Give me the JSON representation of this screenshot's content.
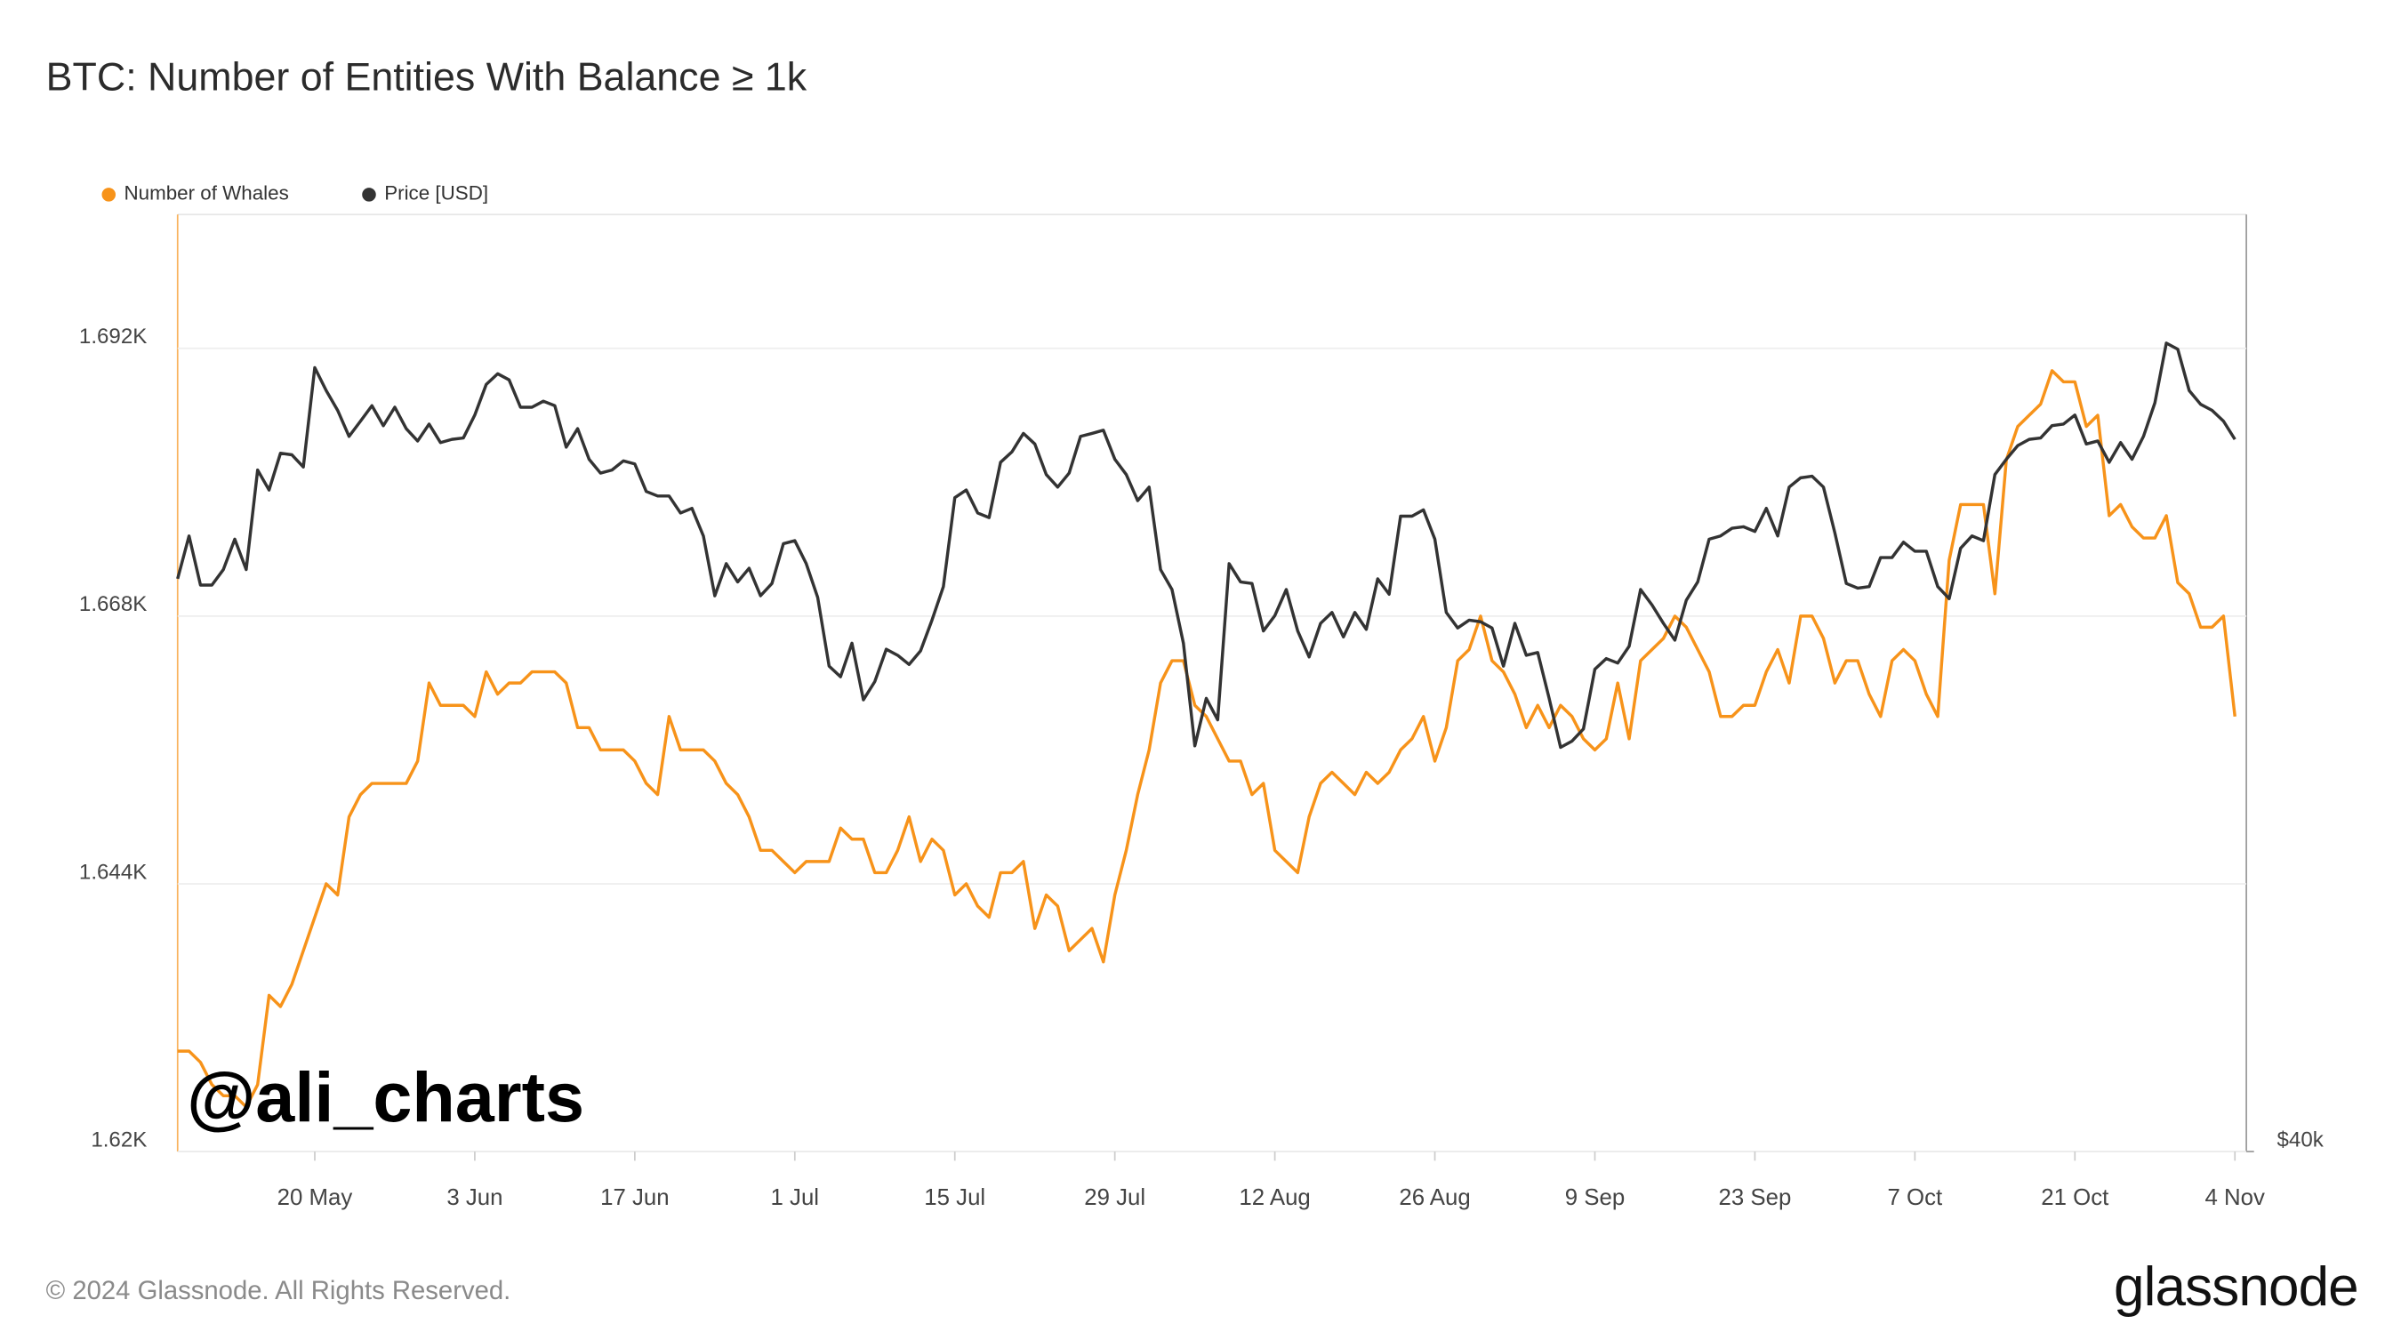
{
  "chart_data": {
    "type": "line",
    "title": "BTC: Number of Entities With Balance ≥ 1k",
    "annotation": "@ali_charts",
    "footer": "© 2024 Glassnode. All Rights Reserved.",
    "logo": "glassnode",
    "grid": true,
    "legend": "top-left",
    "x": [
      "8 May",
      "9 May",
      "10 May",
      "11 May",
      "12 May",
      "13 May",
      "14 May",
      "15 May",
      "16 May",
      "17 May",
      "18 May",
      "19 May",
      "20 May",
      "21 May",
      "22 May",
      "23 May",
      "24 May",
      "25 May",
      "26 May",
      "27 May",
      "28 May",
      "29 May",
      "30 May",
      "31 May",
      "1 Jun",
      "2 Jun",
      "3 Jun",
      "4 Jun",
      "5 Jun",
      "6 Jun",
      "7 Jun",
      "8 Jun",
      "9 Jun",
      "10 Jun",
      "11 Jun",
      "12 Jun",
      "13 Jun",
      "14 Jun",
      "15 Jun",
      "16 Jun",
      "17 Jun",
      "18 Jun",
      "19 Jun",
      "20 Jun",
      "21 Jun",
      "22 Jun",
      "23 Jun",
      "24 Jun",
      "25 Jun",
      "26 Jun",
      "27 Jun",
      "28 Jun",
      "29 Jun",
      "30 Jun",
      "1 Jul",
      "2 Jul",
      "3 Jul",
      "4 Jul",
      "5 Jul",
      "6 Jul",
      "7 Jul",
      "8 Jul",
      "9 Jul",
      "10 Jul",
      "11 Jul",
      "12 Jul",
      "13 Jul",
      "14 Jul",
      "15 Jul",
      "16 Jul",
      "17 Jul",
      "18 Jul",
      "19 Jul",
      "20 Jul",
      "21 Jul",
      "22 Jul",
      "23 Jul",
      "24 Jul",
      "25 Jul",
      "26 Jul",
      "27 Jul",
      "28 Jul",
      "29 Jul",
      "30 Jul",
      "31 Jul",
      "1 Aug",
      "2 Aug",
      "3 Aug",
      "4 Aug",
      "5 Aug",
      "6 Aug",
      "7 Aug",
      "8 Aug",
      "9 Aug",
      "10 Aug",
      "11 Aug",
      "12 Aug",
      "13 Aug",
      "14 Aug",
      "15 Aug",
      "16 Aug",
      "17 Aug",
      "18 Aug",
      "19 Aug",
      "20 Aug",
      "21 Aug",
      "22 Aug",
      "23 Aug",
      "24 Aug",
      "25 Aug",
      "26 Aug",
      "27 Aug",
      "28 Aug",
      "29 Aug",
      "30 Aug",
      "31 Aug",
      "1 Sep",
      "2 Sep",
      "3 Sep",
      "4 Sep",
      "5 Sep",
      "6 Sep",
      "7 Sep",
      "8 Sep",
      "9 Sep",
      "10 Sep",
      "11 Sep",
      "12 Sep",
      "13 Sep",
      "14 Sep",
      "15 Sep",
      "16 Sep",
      "17 Sep",
      "18 Sep",
      "19 Sep",
      "20 Sep",
      "21 Sep",
      "22 Sep",
      "23 Sep",
      "24 Sep",
      "25 Sep",
      "26 Sep",
      "27 Sep",
      "28 Sep",
      "29 Sep",
      "30 Sep",
      "1 Oct",
      "2 Oct",
      "3 Oct",
      "4 Oct",
      "5 Oct",
      "6 Oct",
      "7 Oct",
      "8 Oct",
      "9 Oct",
      "10 Oct",
      "11 Oct",
      "12 Oct",
      "13 Oct",
      "14 Oct",
      "15 Oct",
      "16 Oct",
      "17 Oct",
      "18 Oct",
      "19 Oct",
      "20 Oct",
      "21 Oct",
      "22 Oct",
      "23 Oct",
      "24 Oct",
      "25 Oct",
      "26 Oct",
      "27 Oct",
      "28 Oct",
      "29 Oct",
      "30 Oct",
      "31 Oct",
      "1 Nov",
      "2 Nov",
      "3 Nov",
      "4 Nov"
    ],
    "xlim": [
      "8 May",
      "5 Nov"
    ],
    "xticks": [
      "20 May",
      "3 Jun",
      "17 Jun",
      "1 Jul",
      "15 Jul",
      "29 Jul",
      "12 Aug",
      "26 Aug",
      "9 Sep",
      "23 Sep",
      "7 Oct",
      "21 Oct",
      "4 Nov"
    ],
    "ylim": [
      1620,
      1704
    ],
    "yticks": [
      {
        "value": 1620,
        "label": "1.62K"
      },
      {
        "value": 1644,
        "label": "1.644K"
      },
      {
        "value": 1668,
        "label": "1.668K"
      },
      {
        "value": 1692,
        "label": "1.692K"
      }
    ],
    "y2lim": [
      40000,
      80000
    ],
    "y2scale": "log",
    "y2ticks": [
      {
        "value": 40000,
        "label": "$40k"
      }
    ],
    "series": [
      {
        "name": "Number of Whales",
        "color": "#f7931a",
        "values": [
          1629,
          1629,
          1628,
          1626,
          1625,
          1625,
          1624,
          1626,
          1634,
          1633,
          1635,
          1638,
          1641,
          1644,
          1643,
          1650,
          1652,
          1653,
          1653,
          1653,
          1653,
          1655,
          1662,
          1660,
          1660,
          1660,
          1659,
          1663,
          1661,
          1662,
          1662,
          1663,
          1663,
          1663,
          1662,
          1658,
          1658,
          1656,
          1656,
          1656,
          1655,
          1653,
          1652,
          1659,
          1656,
          1656,
          1656,
          1655,
          1653,
          1652,
          1650,
          1647,
          1647,
          1646,
          1645,
          1646,
          1646,
          1646,
          1649,
          1648,
          1648,
          1645,
          1645,
          1647,
          1650,
          1646,
          1648,
          1647,
          1643,
          1644,
          1642,
          1641,
          1645,
          1645,
          1646,
          1640,
          1643,
          1642,
          1638,
          1639,
          1640,
          1637,
          1643,
          1647,
          1652,
          1656,
          1662,
          1664,
          1664,
          1660,
          1659,
          1657,
          1655,
          1655,
          1652,
          1653,
          1647,
          1646,
          1645,
          1650,
          1653,
          1654,
          1653,
          1652,
          1654,
          1653,
          1654,
          1656,
          1657,
          1659,
          1655,
          1658,
          1664,
          1665,
          1668,
          1664,
          1663,
          1661,
          1658,
          1660,
          1658,
          1660,
          1659,
          1657,
          1656,
          1657,
          1662,
          1657,
          1664,
          1665,
          1666,
          1668,
          1667,
          1665,
          1663,
          1659,
          1659,
          1660,
          1660,
          1663,
          1665,
          1662,
          1668,
          1668,
          1666,
          1662,
          1664,
          1664,
          1661,
          1659,
          1664,
          1665,
          1664,
          1661,
          1659,
          1673,
          1678,
          1678,
          1678,
          1670,
          1682,
          1685,
          1686,
          1687,
          1690,
          1689,
          1689,
          1685,
          1686,
          1677,
          1678,
          1676,
          1675,
          1675,
          1677,
          1671,
          1670,
          1667,
          1667,
          1668,
          1659
        ]
      },
      {
        "name": "Price [USD]",
        "color": "#333333",
        "axis": "y2",
        "values": [
          61100,
          63070,
          60820,
          60820,
          61520,
          62920,
          61520,
          66220,
          65250,
          67050,
          66970,
          66370,
          71430,
          70230,
          69210,
          67890,
          68660,
          69450,
          68430,
          69370,
          68280,
          67660,
          68510,
          67580,
          67740,
          67810,
          68970,
          70550,
          71110,
          70790,
          69370,
          69370,
          69680,
          69450,
          67350,
          68280,
          66750,
          66070,
          66220,
          66670,
          66520,
          65180,
          64960,
          64960,
          64150,
          64370,
          63070,
          60340,
          61790,
          60960,
          61580,
          60340,
          60890,
          62710,
          62850,
          61790,
          60270,
          57280,
          56830,
          58260,
          55870,
          56630,
          58000,
          57740,
          57350,
          57930,
          59260,
          60750,
          64880,
          65250,
          64150,
          63930,
          66600,
          67120,
          68040,
          67510,
          66000,
          65390,
          66070,
          67890,
          68040,
          68200,
          66750,
          66000,
          64740,
          65390,
          61520,
          60620,
          58260,
          54000,
          55930,
          55050,
          61790,
          60960,
          60890,
          58790,
          59460,
          60620,
          58790,
          57670,
          59120,
          59600,
          58530,
          59600,
          58860,
          61100,
          60410,
          64000,
          64000,
          64300,
          62920,
          59600,
          58920,
          59260,
          59190,
          58920,
          57280,
          59120,
          57740,
          57860,
          55930,
          53940,
          54190,
          54680,
          57150,
          57600,
          57410,
          58130,
          60620,
          59930,
          59120,
          58390,
          60140,
          60960,
          62920,
          63070,
          63430,
          63500,
          63280,
          64370,
          63070,
          65390,
          65840,
          65920,
          65390,
          63210,
          60890,
          60680,
          60750,
          62070,
          62070,
          62780,
          62360,
          62360,
          60750,
          60210,
          62500,
          63070,
          62850,
          66000,
          66750,
          67430,
          67740,
          67810,
          68430,
          68510,
          68970,
          67510,
          67660,
          66600,
          67580,
          66750,
          67890,
          69600,
          72740,
          72410,
          70230,
          69520,
          69210,
          68660,
          67740
        ]
      }
    ]
  }
}
